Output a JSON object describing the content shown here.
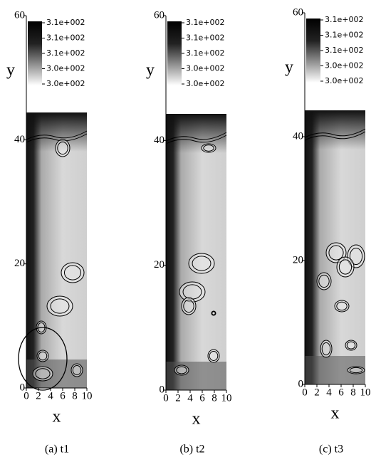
{
  "panels": [
    {
      "caption": "(a) t1",
      "x_label": "x",
      "y_label": "y",
      "x_ticks": [
        0,
        2,
        4,
        6,
        8,
        10
      ],
      "y_ticks": [
        0,
        20,
        40,
        60
      ],
      "colorbar_labels": [
        "3.1e+002",
        "3.1e+002",
        "3.1e+002",
        "3.0e+002",
        "3.0e+002"
      ]
    },
    {
      "caption": "(b) t2",
      "x_label": "x",
      "y_label": "y",
      "x_ticks": [
        0,
        2,
        4,
        6,
        8,
        10
      ],
      "y_ticks": [
        0,
        20,
        40,
        60
      ],
      "colorbar_labels": [
        "3.1e+002",
        "3.1e+002",
        "3.1e+002",
        "3.0e+002",
        "3.0e+002"
      ]
    },
    {
      "caption": "(c) t3",
      "x_label": "x",
      "y_label": "y",
      "x_ticks": [
        0,
        2,
        4,
        6,
        8,
        10
      ],
      "y_ticks": [
        0,
        20,
        40,
        60
      ],
      "colorbar_labels": [
        "3.1e+002",
        "3.1e+002",
        "3.1e+002",
        "3.0e+002",
        "3.0e+002"
      ]
    }
  ]
}
